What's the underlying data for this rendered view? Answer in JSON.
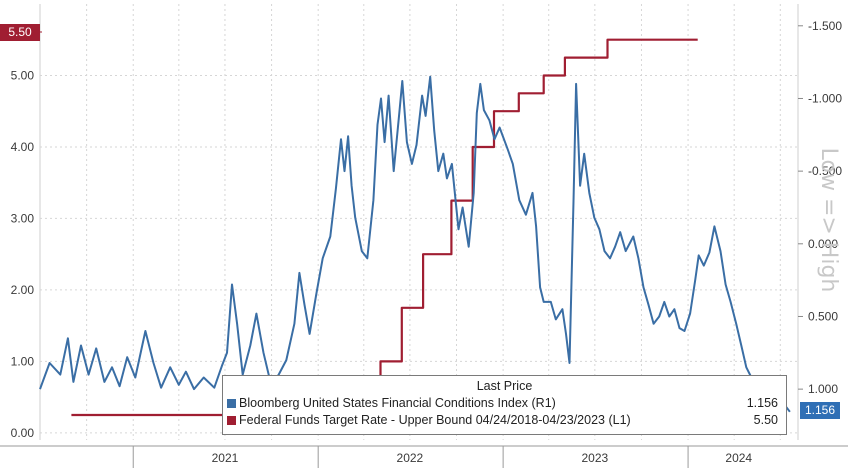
{
  "chart_data": {
    "type": "line",
    "left_axis": {
      "ticks": [
        "0.00",
        "1.00",
        "2.00",
        "3.00",
        "4.00",
        "5.00"
      ],
      "range": [
        -0.1,
        6.0
      ]
    },
    "right_axis": {
      "ticks": [
        "1.000",
        "0.500",
        "0.000",
        "-0.500",
        "-1.000",
        "-1.500"
      ],
      "range": [
        1.35,
        -1.65
      ],
      "inverted": true,
      "label": "Low => High"
    },
    "x_axis": {
      "ticks": [
        "2021",
        "2022",
        "2023",
        "2024"
      ]
    },
    "legend": {
      "title": "Last Price",
      "items": [
        {
          "name": "Bloomberg United States Financial Conditions Index  (R1)",
          "value": "1.156",
          "color": "#3a6ea5"
        },
        {
          "name": "Federal Funds Target Rate - Upper Bound 04/24/2018-04/23/2023  (L1)",
          "value": "5.50",
          "color": "#a01e32"
        }
      ]
    },
    "last_value_flags": {
      "left": "5.50",
      "right": "1.156"
    },
    "series": [
      {
        "name": "Federal Funds Target Rate - Upper Bound 04/24/2018-04/23/2023",
        "axis": "left",
        "color": "#a01e32",
        "points": [
          [
            "2020-09-01",
            0.25
          ],
          [
            "2022-03-16",
            0.25
          ],
          [
            "2022-03-16",
            0.5
          ],
          [
            "2022-05-04",
            0.5
          ],
          [
            "2022-05-04",
            1.0
          ],
          [
            "2022-06-15",
            1.0
          ],
          [
            "2022-06-15",
            1.75
          ],
          [
            "2022-07-27",
            1.75
          ],
          [
            "2022-07-27",
            2.5
          ],
          [
            "2022-09-21",
            2.5
          ],
          [
            "2022-09-21",
            3.25
          ],
          [
            "2022-11-02",
            3.25
          ],
          [
            "2022-11-02",
            4.0
          ],
          [
            "2022-12-14",
            4.0
          ],
          [
            "2022-12-14",
            4.5
          ],
          [
            "2023-02-01",
            4.5
          ],
          [
            "2023-02-01",
            4.75
          ],
          [
            "2023-03-22",
            4.75
          ],
          [
            "2023-03-22",
            5.0
          ],
          [
            "2023-05-03",
            5.0
          ],
          [
            "2023-05-03",
            5.25
          ],
          [
            "2023-07-26",
            5.25
          ],
          [
            "2023-07-26",
            5.5
          ],
          [
            "2024-01-20",
            5.5
          ]
        ]
      },
      {
        "name": "Bloomberg United States Financial Conditions Index",
        "axis": "right",
        "color": "#3a6ea5",
        "points": [
          [
            "2020-07-01",
            1.0
          ],
          [
            "2020-07-20",
            0.82
          ],
          [
            "2020-08-10",
            0.9
          ],
          [
            "2020-08-25",
            0.65
          ],
          [
            "2020-09-05",
            0.95
          ],
          [
            "2020-09-20",
            0.7
          ],
          [
            "2020-10-05",
            0.9
          ],
          [
            "2020-10-20",
            0.72
          ],
          [
            "2020-11-05",
            0.95
          ],
          [
            "2020-11-20",
            0.85
          ],
          [
            "2020-12-05",
            0.98
          ],
          [
            "2020-12-20",
            0.78
          ],
          [
            "2021-01-05",
            0.92
          ],
          [
            "2021-01-25",
            0.6
          ],
          [
            "2021-02-10",
            0.82
          ],
          [
            "2021-02-25",
            0.99
          ],
          [
            "2021-03-15",
            0.85
          ],
          [
            "2021-04-01",
            0.97
          ],
          [
            "2021-04-15",
            0.88
          ],
          [
            "2021-05-01",
            1.0
          ],
          [
            "2021-05-20",
            0.92
          ],
          [
            "2021-06-10",
            0.99
          ],
          [
            "2021-06-25",
            0.84
          ],
          [
            "2021-07-05",
            0.75
          ],
          [
            "2021-07-15",
            0.28
          ],
          [
            "2021-07-25",
            0.55
          ],
          [
            "2021-08-05",
            0.9
          ],
          [
            "2021-08-20",
            0.7
          ],
          [
            "2021-09-01",
            0.48
          ],
          [
            "2021-09-15",
            0.75
          ],
          [
            "2021-09-30",
            0.97
          ],
          [
            "2021-10-15",
            0.9
          ],
          [
            "2021-10-30",
            0.8
          ],
          [
            "2021-11-15",
            0.55
          ],
          [
            "2021-11-25",
            0.2
          ],
          [
            "2021-12-05",
            0.42
          ],
          [
            "2021-12-15",
            0.62
          ],
          [
            "2021-12-28",
            0.35
          ],
          [
            "2022-01-10",
            0.1
          ],
          [
            "2022-01-25",
            -0.05
          ],
          [
            "2022-02-05",
            -0.38
          ],
          [
            "2022-02-15",
            -0.72
          ],
          [
            "2022-02-22",
            -0.5
          ],
          [
            "2022-03-01",
            -0.74
          ],
          [
            "2022-03-08",
            -0.4
          ],
          [
            "2022-03-15",
            -0.18
          ],
          [
            "2022-03-28",
            0.05
          ],
          [
            "2022-04-08",
            0.1
          ],
          [
            "2022-04-20",
            -0.3
          ],
          [
            "2022-04-28",
            -0.82
          ],
          [
            "2022-05-05",
            -1.0
          ],
          [
            "2022-05-12",
            -0.7
          ],
          [
            "2022-05-20",
            -1.02
          ],
          [
            "2022-05-30",
            -0.5
          ],
          [
            "2022-06-10",
            -0.9
          ],
          [
            "2022-06-16",
            -1.12
          ],
          [
            "2022-06-25",
            -0.7
          ],
          [
            "2022-07-05",
            -0.55
          ],
          [
            "2022-07-14",
            -0.68
          ],
          [
            "2022-07-25",
            -1.02
          ],
          [
            "2022-08-01",
            -0.88
          ],
          [
            "2022-08-10",
            -1.15
          ],
          [
            "2022-08-18",
            -0.78
          ],
          [
            "2022-08-26",
            -0.5
          ],
          [
            "2022-09-05",
            -0.62
          ],
          [
            "2022-09-12",
            -0.45
          ],
          [
            "2022-09-22",
            -0.55
          ],
          [
            "2022-10-05",
            -0.1
          ],
          [
            "2022-10-13",
            -0.25
          ],
          [
            "2022-10-25",
            0.02
          ],
          [
            "2022-11-04",
            -0.35
          ],
          [
            "2022-11-10",
            -0.9
          ],
          [
            "2022-11-17",
            -1.1
          ],
          [
            "2022-11-24",
            -0.92
          ],
          [
            "2022-12-05",
            -0.85
          ],
          [
            "2022-12-15",
            -0.72
          ],
          [
            "2022-12-25",
            -0.8
          ],
          [
            "2023-01-10",
            -0.65
          ],
          [
            "2023-01-20",
            -0.55
          ],
          [
            "2023-02-02",
            -0.3
          ],
          [
            "2023-02-15",
            -0.2
          ],
          [
            "2023-02-28",
            -0.35
          ],
          [
            "2023-03-07",
            -0.12
          ],
          [
            "2023-03-15",
            0.3
          ],
          [
            "2023-03-22",
            0.4
          ],
          [
            "2023-04-05",
            0.4
          ],
          [
            "2023-04-15",
            0.52
          ],
          [
            "2023-04-28",
            0.45
          ],
          [
            "2023-05-05",
            0.62
          ],
          [
            "2023-05-12",
            0.82
          ],
          [
            "2023-05-20",
            -0.32
          ],
          [
            "2023-05-25",
            -1.1
          ],
          [
            "2023-06-02",
            -0.4
          ],
          [
            "2023-06-10",
            -0.62
          ],
          [
            "2023-06-20",
            -0.35
          ],
          [
            "2023-06-30",
            -0.18
          ],
          [
            "2023-07-10",
            -0.1
          ],
          [
            "2023-07-20",
            0.05
          ],
          [
            "2023-07-31",
            0.1
          ],
          [
            "2023-08-10",
            0.02
          ],
          [
            "2023-08-20",
            -0.08
          ],
          [
            "2023-08-31",
            0.05
          ],
          [
            "2023-09-15",
            -0.05
          ],
          [
            "2023-09-25",
            0.1
          ],
          [
            "2023-10-05",
            0.3
          ],
          [
            "2023-10-15",
            0.42
          ],
          [
            "2023-10-25",
            0.55
          ],
          [
            "2023-11-05",
            0.5
          ],
          [
            "2023-11-15",
            0.4
          ],
          [
            "2023-11-25",
            0.5
          ],
          [
            "2023-12-05",
            0.45
          ],
          [
            "2023-12-15",
            0.58
          ],
          [
            "2023-12-25",
            0.6
          ],
          [
            "2024-01-05",
            0.48
          ],
          [
            "2024-01-15",
            0.25
          ],
          [
            "2024-01-22",
            0.08
          ],
          [
            "2024-02-01",
            0.15
          ],
          [
            "2024-02-12",
            0.06
          ],
          [
            "2024-02-22",
            -0.12
          ],
          [
            "2024-03-05",
            0.05
          ],
          [
            "2024-03-15",
            0.28
          ],
          [
            "2024-03-25",
            0.4
          ],
          [
            "2024-04-05",
            0.55
          ],
          [
            "2024-04-15",
            0.7
          ],
          [
            "2024-04-25",
            0.85
          ],
          [
            "2024-05-05",
            0.92
          ],
          [
            "2024-05-15",
            0.98
          ],
          [
            "2024-05-25",
            1.05
          ],
          [
            "2024-06-05",
            1.0
          ],
          [
            "2024-06-15",
            1.1
          ],
          [
            "2024-06-25",
            1.08
          ],
          [
            "2024-07-05",
            0.95
          ],
          [
            "2024-07-12",
            1.12
          ],
          [
            "2024-07-20",
            1.156
          ]
        ]
      }
    ]
  }
}
